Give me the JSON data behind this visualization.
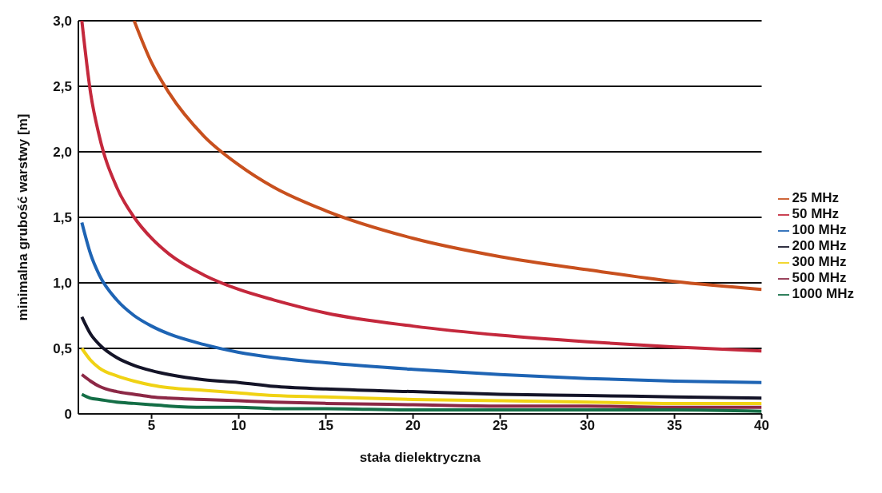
{
  "chart_data": {
    "type": "line",
    "xlabel": "stała dielektryczna",
    "ylabel": "minimalna grubość warstwy [m]",
    "x": [
      1,
      1.5,
      2,
      3,
      4,
      5,
      6,
      8,
      10,
      12,
      15,
      20,
      25,
      30,
      35,
      40
    ],
    "series": [
      {
        "name": "25 MHz",
        "color": "#c8501e",
        "values": [
          null,
          null,
          null,
          null,
          3.0,
          2.68,
          2.45,
          2.12,
          1.9,
          1.73,
          1.55,
          1.34,
          1.2,
          1.1,
          1.01,
          0.95
        ]
      },
      {
        "name": "50 MHz",
        "color": "#c4283c",
        "values": [
          3.0,
          2.45,
          2.12,
          1.73,
          1.5,
          1.34,
          1.22,
          1.06,
          0.95,
          0.87,
          0.77,
          0.67,
          0.6,
          0.55,
          0.51,
          0.48
        ]
      },
      {
        "name": "100 MHz",
        "color": "#1e64b4",
        "values": [
          1.46,
          1.22,
          1.06,
          0.87,
          0.75,
          0.67,
          0.61,
          0.53,
          0.47,
          0.43,
          0.39,
          0.34,
          0.3,
          0.27,
          0.25,
          0.24
        ]
      },
      {
        "name": "200 MHz",
        "color": "#141428",
        "values": [
          0.74,
          0.61,
          0.53,
          0.43,
          0.37,
          0.33,
          0.3,
          0.26,
          0.24,
          0.21,
          0.19,
          0.17,
          0.15,
          0.14,
          0.13,
          0.12
        ]
      },
      {
        "name": "300 MHz",
        "color": "#f0d214",
        "values": [
          0.5,
          0.41,
          0.35,
          0.29,
          0.25,
          0.22,
          0.2,
          0.18,
          0.16,
          0.14,
          0.13,
          0.11,
          0.1,
          0.09,
          0.08,
          0.08
        ]
      },
      {
        "name": "500 MHz",
        "color": "#8c2846",
        "values": [
          0.3,
          0.25,
          0.21,
          0.17,
          0.15,
          0.13,
          0.12,
          0.11,
          0.1,
          0.09,
          0.08,
          0.07,
          0.06,
          0.06,
          0.05,
          0.05
        ]
      },
      {
        "name": "1000 MHz",
        "color": "#146e46",
        "values": [
          0.15,
          0.12,
          0.11,
          0.09,
          0.08,
          0.07,
          0.06,
          0.05,
          0.05,
          0.04,
          0.04,
          0.03,
          0.03,
          0.03,
          0.03,
          0.02
        ]
      }
    ],
    "xlim": [
      0.8,
      40
    ],
    "xticks": [
      5,
      10,
      15,
      20,
      25,
      30,
      35,
      40
    ],
    "ylim": [
      0,
      3
    ],
    "yticks": [
      {
        "value": 0,
        "label": "0"
      },
      {
        "value": 0.5,
        "label": "0,5"
      },
      {
        "value": 1,
        "label": "1,0"
      },
      {
        "value": 1.5,
        "label": "1,5"
      },
      {
        "value": 2,
        "label": "2,0"
      },
      {
        "value": 2.5,
        "label": "2,5"
      },
      {
        "value": 3,
        "label": "3,0"
      }
    ],
    "grid": "y",
    "legend": "right",
    "marker": "none",
    "line_style": "solid"
  }
}
